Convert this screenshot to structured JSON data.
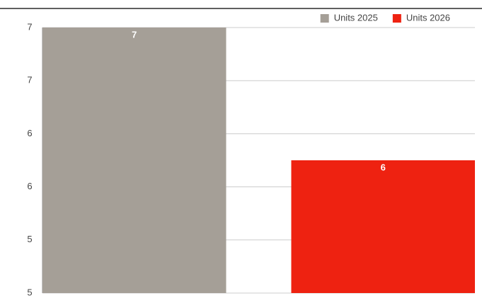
{
  "chart_data": {
    "type": "bar",
    "categories": [
      null
    ],
    "series": [
      {
        "name": "Units 2025",
        "color": "#a59f97",
        "values": [
          7
        ]
      },
      {
        "name": "Units 2026",
        "color": "#ee2211",
        "values": [
          6
        ]
      }
    ],
    "ylim": [
      5,
      7
    ],
    "yticks": [
      5,
      {
        "value": 5.4,
        "label": "5"
      },
      {
        "value": 5.8,
        "label": "6"
      },
      {
        "value": 6.2,
        "label": "6"
      },
      {
        "value": 6.6,
        "label": "7"
      },
      7
    ],
    "grid": true,
    "legend": "top-right"
  }
}
